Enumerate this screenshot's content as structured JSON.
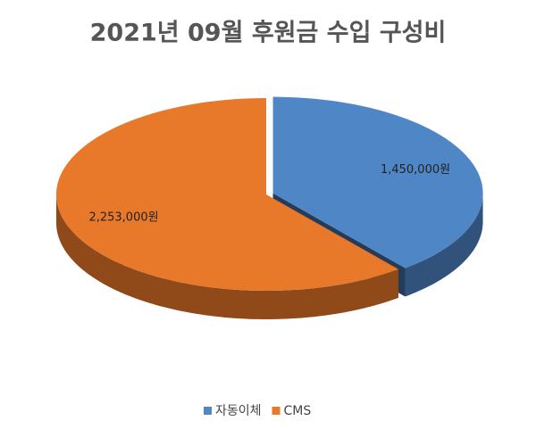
{
  "chart_data": {
    "type": "pie",
    "title": "2021년 09월 후원금 수입 구성비",
    "categories": [
      "자동이체",
      "CMS"
    ],
    "values": [
      1450000,
      2253000
    ],
    "value_labels": [
      "1,450,000원",
      "2,253,000원"
    ],
    "colors": [
      "#4f86c6",
      "#e8782a"
    ]
  }
}
